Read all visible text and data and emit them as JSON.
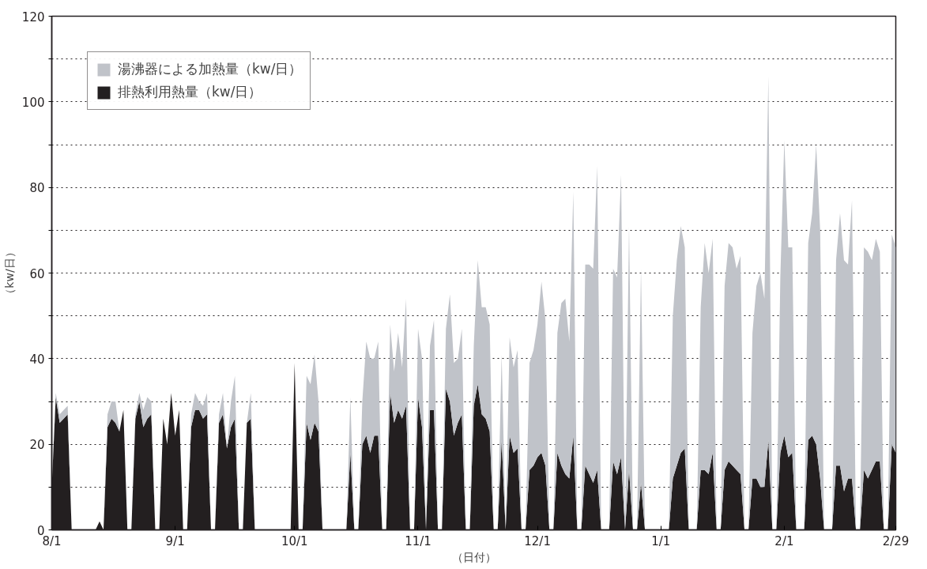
{
  "chart_data": {
    "type": "area",
    "stacked": true,
    "xlabel": "（日付）",
    "ylabel": "（kw/日）",
    "ylim": [
      0,
      120
    ],
    "yticks": [
      0,
      {
        "value": 10,
        "label": null
      },
      20,
      {
        "value": 30,
        "label": null
      },
      40,
      {
        "value": 50,
        "label": null
      },
      60,
      {
        "value": 70,
        "label": null
      },
      80,
      {
        "value": 90,
        "label": null
      },
      100,
      {
        "value": 110,
        "label": null
      },
      120
    ],
    "grid": "y",
    "legend": "top left",
    "categories": [
      "8/1",
      null,
      null,
      null,
      null,
      null,
      null,
      null,
      null,
      null,
      null,
      null,
      null,
      null,
      null,
      null,
      null,
      null,
      null,
      null,
      null,
      null,
      null,
      null,
      null,
      null,
      null,
      null,
      null,
      null,
      null,
      "9/1",
      null,
      null,
      null,
      null,
      null,
      null,
      null,
      null,
      null,
      null,
      null,
      null,
      null,
      null,
      null,
      null,
      null,
      null,
      null,
      null,
      null,
      null,
      null,
      null,
      null,
      null,
      null,
      null,
      null,
      "10/1",
      null,
      null,
      null,
      null,
      null,
      null,
      null,
      null,
      null,
      null,
      null,
      null,
      null,
      null,
      null,
      null,
      null,
      null,
      null,
      null,
      null,
      null,
      null,
      null,
      null,
      null,
      null,
      null,
      null,
      null,
      "11/1",
      null,
      null,
      null,
      null,
      null,
      null,
      null,
      null,
      null,
      null,
      null,
      null,
      null,
      null,
      null,
      null,
      null,
      null,
      null,
      null,
      null,
      null,
      null,
      null,
      null,
      null,
      null,
      null,
      null,
      "12/1",
      null,
      null,
      null,
      null,
      null,
      null,
      null,
      null,
      null,
      null,
      null,
      null,
      null,
      null,
      null,
      null,
      null,
      null,
      null,
      null,
      null,
      null,
      null,
      null,
      null,
      null,
      null,
      null,
      null,
      null,
      "1/1",
      null,
      null,
      null,
      null,
      null,
      null,
      null,
      null,
      null,
      null,
      null,
      null,
      null,
      null,
      null,
      null,
      null,
      null,
      null,
      null,
      null,
      null,
      null,
      null,
      null,
      null,
      null,
      null,
      null,
      null,
      "2/1",
      null,
      null,
      null,
      null,
      null,
      null,
      null,
      null,
      null,
      null,
      null,
      null,
      null,
      null,
      null,
      null,
      null,
      null,
      null,
      null,
      null,
      null,
      null,
      null,
      null,
      null,
      null,
      "2/29"
    ],
    "series": [
      {
        "name": "排熱利用熱量（kw/日）",
        "color": "#231f20",
        "values": [
          10,
          31,
          25,
          26,
          27,
          0,
          0,
          0,
          0,
          0,
          0,
          0,
          2,
          0,
          24,
          26,
          25,
          23,
          28,
          0,
          0,
          26,
          30,
          24,
          26,
          27,
          0,
          0,
          26,
          20,
          32,
          22,
          28,
          0,
          0,
          24,
          28,
          28,
          26,
          27,
          0,
          0,
          25,
          27,
          19,
          24,
          26,
          0,
          0,
          25,
          26,
          0,
          0,
          0,
          0,
          0,
          0,
          0,
          0,
          0,
          0,
          39,
          0,
          0,
          25,
          21,
          25,
          23,
          0,
          0,
          0,
          0,
          0,
          0,
          0,
          18,
          0,
          0,
          20,
          22,
          18,
          22,
          22,
          0,
          0,
          32,
          25,
          28,
          26,
          29,
          0,
          0,
          31,
          24,
          0,
          28,
          28,
          0,
          0,
          33,
          30,
          22,
          25,
          27,
          0,
          0,
          29,
          34,
          27,
          26,
          23,
          0,
          0,
          21,
          0,
          22,
          18,
          19,
          0,
          0,
          14,
          15,
          17,
          18,
          15,
          0,
          0,
          18,
          15,
          13,
          12,
          22,
          0,
          0,
          15,
          13,
          11,
          14,
          0,
          0,
          0,
          16,
          13,
          17,
          0,
          14,
          0,
          0,
          11,
          0,
          0,
          0,
          0,
          0,
          0,
          0,
          12,
          15,
          18,
          19,
          0,
          0,
          0,
          14,
          14,
          13,
          18,
          0,
          0,
          14,
          16,
          15,
          14,
          13,
          0,
          0,
          12,
          12,
          10,
          10,
          21,
          0,
          0,
          18,
          22,
          17,
          18,
          0,
          0,
          0,
          21,
          22,
          20,
          12,
          0,
          0,
          0,
          15,
          15,
          9,
          12,
          12,
          0,
          0,
          14,
          12,
          14,
          16,
          16,
          0,
          0,
          20,
          18
        ]
      },
      {
        "name": "湯沸器による加熱量（kw/日）",
        "color": "#c0c3c9",
        "values": [
          0,
          1,
          2,
          2,
          2,
          0,
          0,
          0,
          0,
          0,
          0,
          0,
          0,
          0,
          3,
          4,
          5,
          0,
          0,
          0,
          0,
          1,
          2,
          4,
          5,
          3,
          0,
          0,
          0,
          0,
          0,
          0,
          0,
          0,
          0,
          3,
          4,
          2,
          3,
          5,
          0,
          0,
          2,
          5,
          0,
          6,
          10,
          0,
          0,
          0,
          6,
          0,
          0,
          0,
          0,
          0,
          0,
          0,
          0,
          0,
          0,
          0,
          0,
          0,
          11,
          13,
          16,
          7,
          0,
          0,
          0,
          0,
          0,
          0,
          0,
          13,
          0,
          0,
          10,
          22,
          22,
          18,
          22,
          0,
          0,
          16,
          12,
          18,
          12,
          25,
          0,
          0,
          16,
          16,
          0,
          15,
          21,
          0,
          0,
          14,
          25,
          17,
          15,
          20,
          0,
          0,
          14,
          29,
          25,
          26,
          25,
          0,
          0,
          20,
          0,
          23,
          20,
          23,
          0,
          0,
          25,
          27,
          31,
          40,
          34,
          0,
          0,
          28,
          38,
          41,
          32,
          57,
          0,
          0,
          47,
          49,
          50,
          71,
          0,
          0,
          0,
          45,
          46,
          66,
          0,
          57,
          0,
          0,
          50,
          0,
          0,
          0,
          0,
          0,
          0,
          0,
          38,
          48,
          53,
          47,
          0,
          0,
          0,
          38,
          53,
          47,
          50,
          0,
          0,
          43,
          51,
          51,
          47,
          51,
          0,
          0,
          34,
          45,
          50,
          44,
          85,
          0,
          0,
          41,
          69,
          49,
          48,
          0,
          0,
          0,
          46,
          52,
          70,
          58,
          0,
          0,
          0,
          48,
          59,
          54,
          50,
          65,
          0,
          0,
          52,
          53,
          49,
          52,
          49,
          0,
          0,
          49,
          48
        ]
      }
    ]
  }
}
